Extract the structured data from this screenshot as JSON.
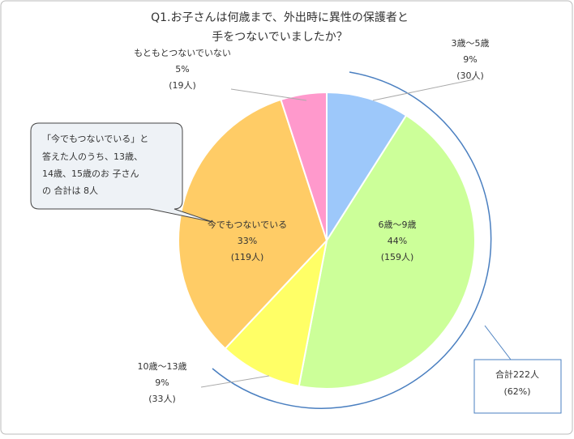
{
  "chart_data": {
    "type": "pie",
    "title": [
      "Q1.お子さんは何歳まで、外出時に異性の保護者と",
      "手をつないでいましたか？"
    ],
    "categories": [
      "3歳～5歳",
      "6歳～9歳",
      "10歳～13歳",
      "今でもつないでいる",
      "もともとつないでいない"
    ],
    "values": [
      9,
      44,
      9,
      33,
      5
    ],
    "value_labels": [
      "9%",
      "44%",
      "9%",
      "33%",
      "5%"
    ],
    "counts": [
      "(30人)",
      "(159人)",
      "(33人)",
      "(119人)",
      "(19人)"
    ],
    "colors": [
      "#9dc8fa",
      "#ccff99",
      "#ffff66",
      "#ffcc66",
      "#ff99cc"
    ],
    "callout": [
      "「今でもつないでいる」と",
      "答えた人のうち、13歳、",
      "14歳、15歳のお 子さん",
      "の 合計は 8人"
    ],
    "bracket": [
      "合計222人",
      "(62%)"
    ]
  }
}
